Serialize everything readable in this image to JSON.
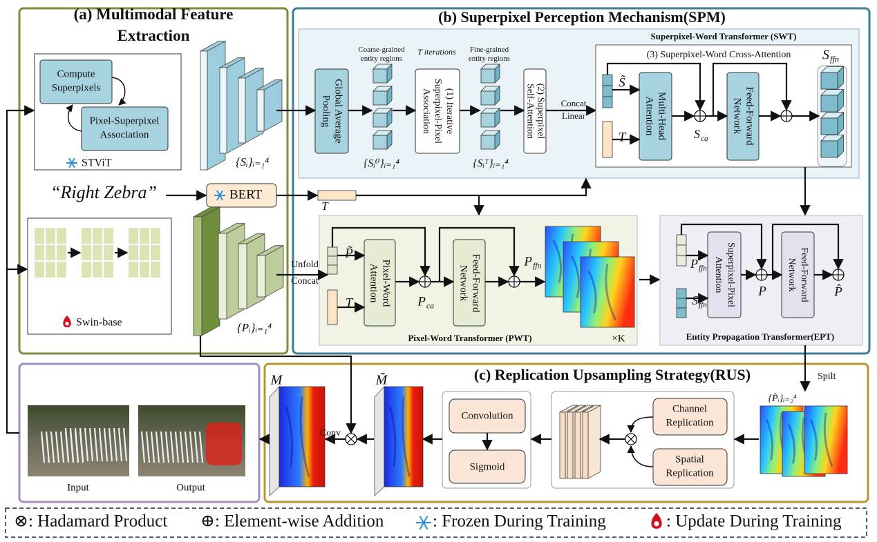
{
  "panel_a": {
    "title": [
      "(a) Multimodal Feature",
      "Extraction"
    ],
    "compute_superpixels": [
      "Compute",
      "Superpixels"
    ],
    "pixel_superpixel_association": [
      "Pixel-Superpixel",
      "Association"
    ],
    "stvit": "STViT",
    "s_features": "{Sᵢ}ᵢ₌₁⁴",
    "query": "“Right Zebra”",
    "bert": "BERT",
    "t_token": "T",
    "swin": "Swin-base",
    "p_features": "{Pᵢ}ᵢ₌₁⁴"
  },
  "panel_b": {
    "title": "(b) Superpixel Perception Mechanism(SPM)",
    "gap": [
      "Global Average",
      "Pooling"
    ],
    "coarse": [
      "Coarse-grained",
      "entity regions"
    ],
    "iterations": "T iterations",
    "fine": [
      "Fine-grained",
      "entity regions"
    ],
    "iterative": [
      "(1) Iterative",
      "Superpixel-Pixel",
      "Association"
    ],
    "self_attention": [
      "(2) Superpixel",
      "Self-Attention"
    ],
    "concat_linear": [
      "Concat",
      "Linear"
    ],
    "s0": "{Sᵢ⁰}ᵢ₌₁⁴",
    "sT": "{Sᵢᵀ}ᵢ₌₁⁴",
    "swt": {
      "title": "Superpixel-Word Transformer (SWT)",
      "cross_attention": "(3) Superpixel-Word Cross-Attention",
      "s_tilde": "S̃",
      "t": "T",
      "mha": [
        "Multi-Head",
        "Attention"
      ],
      "s_ca": {
        "symbol": "S",
        "sub": "ca"
      },
      "ffn": [
        "Feed-Forward",
        "Network"
      ],
      "s_ffn": {
        "symbol": "S",
        "sub": "ffn"
      }
    },
    "pwt": {
      "title": "Pixel-Word Transformer (PWT)",
      "repeat": "×K",
      "unfold_concat": [
        "Unfold",
        "Concat"
      ],
      "p_tilde": "P̃",
      "t": "T",
      "pwa": [
        "Pixel-Word",
        "Attention"
      ],
      "p_ca": {
        "symbol": "P",
        "sub": "ca"
      },
      "ffn": [
        "Feed-Forward",
        "Network"
      ],
      "p_ffn": {
        "symbol": "P",
        "sub": "ffn"
      }
    },
    "ept": {
      "title": "Entity Propagation Transformer(EPT)",
      "p_ffn": {
        "symbol": "P",
        "sub": "ffn"
      },
      "s_ffn": {
        "symbol": "S",
        "sub": "ffn"
      },
      "spa": [
        "Superpixel-Pixel",
        "Attention"
      ],
      "p": "P",
      "ffn": [
        "Feed-Forward",
        "Network"
      ],
      "p_hat": "P̂"
    }
  },
  "panel_c": {
    "title": "(c) Replication Upsampling Strategy(RUS)",
    "split": "Spilt",
    "p_hat_set": "{P̂ᵢ}ᵢ₌₂⁴",
    "channel": [
      "Channel",
      "Replication"
    ],
    "spatial": [
      "Spatial",
      "Replication"
    ],
    "convolution": "Convolution",
    "sigmoid": "Sigmoid",
    "m_tilde": "M̃",
    "m": "M",
    "conv": "Conv",
    "input": "Input",
    "output": "Output"
  },
  "legend": [
    "⊗: Hadamard Product",
    "⊕: Element-wise Addition",
    ": Frozen During Training",
    ": Update During Training"
  ]
}
